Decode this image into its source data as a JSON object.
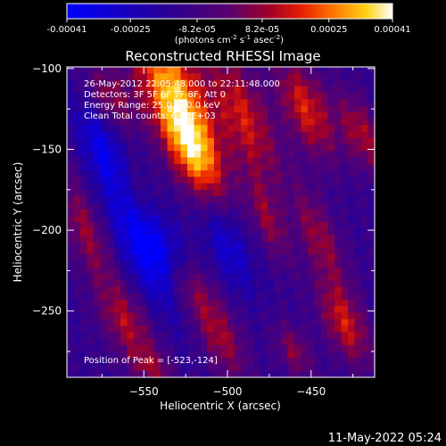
{
  "chart_data": {
    "type": "heatmap",
    "title": "Reconstructed RHESSI Image",
    "xlabel": "Heliocentric X (arcsec)",
    "ylabel": "Heliocentric Y (arcsec)",
    "xlim": [
      -596,
      -412
    ],
    "ylim": [
      -291,
      -99
    ],
    "x_ticks": [
      -550,
      -500,
      -450
    ],
    "y_ticks": [
      -100,
      -150,
      -200,
      -250
    ],
    "colorbar": {
      "ticks": [
        "-0.00041",
        "-0.00025",
        "-8.2e-05",
        "8.2e-05",
        "0.00025",
        "0.00041"
      ],
      "units_prefix": "(photons cm",
      "units_exp1": "-2",
      "units_mid": " s",
      "units_exp2": "-1",
      "units_mid2": " asec",
      "units_exp3": "-2",
      "units_suffix": ")",
      "range": [
        -0.00041,
        0.00041
      ]
    },
    "annotations": [
      "26-May-2012 22:05:48.000 to 22:11:48.000",
      "Detectors: 3F 5F 6F 7F 8F, Att 0",
      "Energy Range: 25.0 - 50.0 keV",
      "Clean    Total counts: 6.03E+03"
    ],
    "peak_label": "Position of Peak = [-523,-124]",
    "peak": [
      -523,
      -124
    ],
    "sources": [
      {
        "x": -533,
        "y": -114,
        "sx": 14,
        "sy": 34,
        "amp": 1.0
      },
      {
        "x": -520,
        "y": -152,
        "sx": 10,
        "sy": 22,
        "amp": 0.75
      },
      {
        "x": -490,
        "y": -130,
        "sx": 11,
        "sy": 30,
        "amp": 0.65
      },
      {
        "x": -453,
        "y": -125,
        "sx": 10,
        "sy": 22,
        "amp": 0.7
      },
      {
        "x": -420,
        "y": -140,
        "sx": 8,
        "sy": 18,
        "amp": 0.55
      },
      {
        "x": -570,
        "y": -118,
        "sx": 9,
        "sy": 14,
        "amp": 0.45
      },
      {
        "x": -585,
        "y": -200,
        "sx": 8,
        "sy": 25,
        "amp": 0.5
      },
      {
        "x": -553,
        "y": -180,
        "sx": 9,
        "sy": 18,
        "amp": 0.5
      },
      {
        "x": -475,
        "y": -195,
        "sx": 6,
        "sy": 18,
        "amp": 0.45
      },
      {
        "x": -445,
        "y": -205,
        "sx": 8,
        "sy": 22,
        "amp": 0.5
      },
      {
        "x": -525,
        "y": -235,
        "sx": 9,
        "sy": 14,
        "amp": 0.45
      },
      {
        "x": -560,
        "y": -258,
        "sx": 10,
        "sy": 18,
        "amp": 0.55
      },
      {
        "x": -505,
        "y": -265,
        "sx": 9,
        "sy": 20,
        "amp": 0.55
      },
      {
        "x": -430,
        "y": -258,
        "sx": 9,
        "sy": 18,
        "amp": 0.65
      },
      {
        "x": -460,
        "y": -275,
        "sx": 7,
        "sy": 12,
        "amp": 0.45
      },
      {
        "x": -545,
        "y": -285,
        "sx": 8,
        "sy": 8,
        "amp": 0.4
      }
    ],
    "negative_regions": [
      {
        "x": -548,
        "y": -205,
        "sx": 12,
        "sy": 30,
        "amp": -0.9
      },
      {
        "x": -575,
        "y": -150,
        "sx": 8,
        "sy": 20,
        "amp": -0.5
      },
      {
        "x": -500,
        "y": -210,
        "sx": 8,
        "sy": 20,
        "amp": -0.45
      }
    ]
  },
  "footer_timestamp": "11-May-2022 05:24"
}
